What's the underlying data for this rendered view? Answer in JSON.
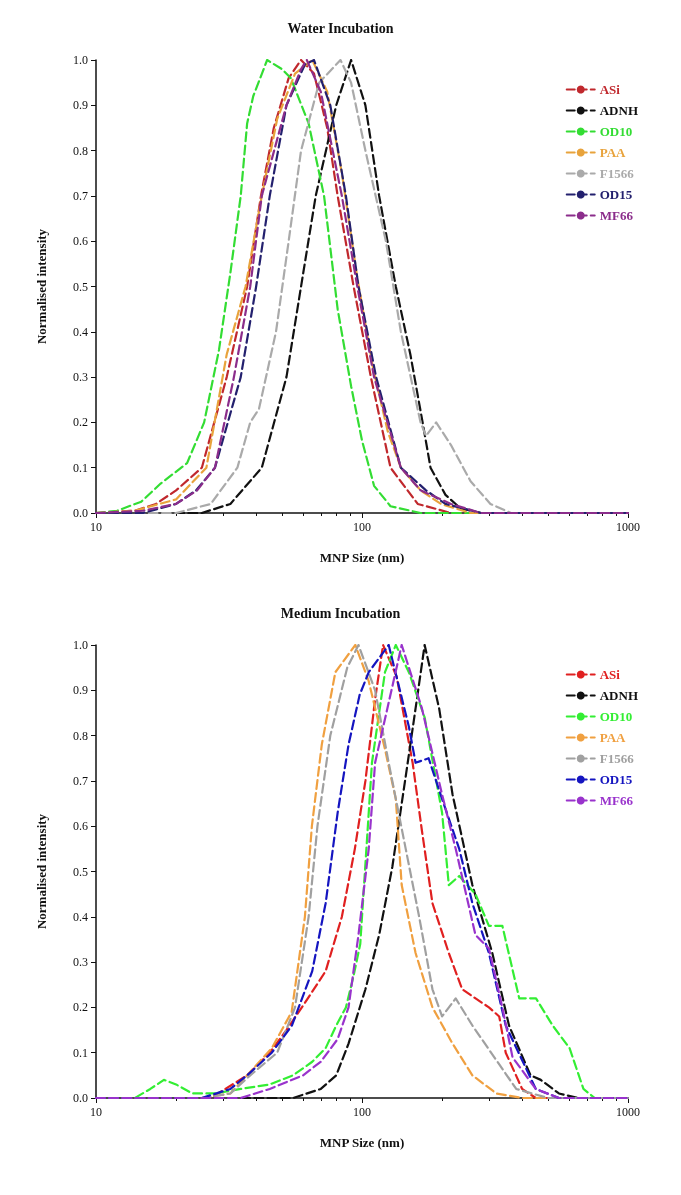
{
  "chart_data": [
    {
      "type": "line",
      "title": "Water Incubation",
      "xlabel": "MNP Size (nm)",
      "ylabel": "Normalised intensity",
      "log": "x",
      "xlim": [
        10,
        1000
      ],
      "xticks": [
        10,
        100,
        1000
      ],
      "ylim": [
        0,
        1
      ],
      "yticks": [
        {
          "value": 0,
          "label": "0.0"
        },
        {
          "value": 0.1,
          "label": "0.1"
        },
        {
          "value": 0.2,
          "label": "0.2"
        },
        {
          "value": 0.3,
          "label": "0.3"
        },
        {
          "value": 0.4,
          "label": "0.4"
        },
        {
          "value": 0.5,
          "label": "0.5"
        },
        {
          "value": 0.6,
          "label": "0.6"
        },
        {
          "value": 0.7,
          "label": "0.7"
        },
        {
          "value": 0.8,
          "label": "0.8"
        },
        {
          "value": 0.9,
          "label": "0.9"
        },
        {
          "value": 1,
          "label": "1.0"
        }
      ],
      "grid": false,
      "legend": "top right",
      "marker": "none",
      "line_style": "dashed",
      "series": [
        {
          "name": "ASi",
          "color": "#c0282d",
          "x": [
            10,
            14,
            16.8,
            20,
            25,
            31,
            37,
            41.7,
            46.6,
            53,
            59,
            66,
            74,
            81,
            93,
            108,
            128,
            162,
            216,
            1000
          ],
          "values": [
            0,
            0.005,
            0.02,
            0.05,
            0.1,
            0.3,
            0.5,
            0.7,
            0.85,
            0.96,
            1,
            0.97,
            0.85,
            0.7,
            0.5,
            0.3,
            0.1,
            0.02,
            0,
            0
          ]
        },
        {
          "name": "ADNH",
          "color": "#111111",
          "x": [
            10,
            25,
            32,
            42,
            52,
            59,
            67,
            80,
            91,
            103,
            116,
            134,
            152,
            169,
            181,
            206,
            235,
            280,
            1000
          ],
          "values": [
            0,
            0,
            0.02,
            0.1,
            0.3,
            0.5,
            0.7,
            0.9,
            1,
            0.9,
            0.7,
            0.5,
            0.35,
            0.2,
            0.1,
            0.04,
            0.01,
            0,
            0
          ]
        },
        {
          "name": "OD10",
          "color": "#33dd33",
          "x": [
            10,
            12,
            14.8,
            17.5,
            22,
            25.5,
            29,
            32,
            35,
            37,
            39,
            44,
            50,
            54,
            63,
            72,
            81,
            91,
            100,
            111,
            128,
            166,
            1000
          ],
          "values": [
            0,
            0.005,
            0.025,
            0.065,
            0.11,
            0.2,
            0.36,
            0.53,
            0.7,
            0.86,
            0.92,
            1,
            0.98,
            0.96,
            0.86,
            0.7,
            0.45,
            0.28,
            0.16,
            0.06,
            0.015,
            0,
            0
          ]
        },
        {
          "name": "PAA",
          "color": "#e8a33c",
          "x": [
            10,
            14,
            20,
            26,
            31,
            36.5,
            42,
            48,
            56,
            65,
            74,
            84,
            96,
            110,
            125,
            140,
            166,
            198,
            256,
            1000
          ],
          "values": [
            0,
            0.005,
            0.03,
            0.1,
            0.35,
            0.5,
            0.7,
            0.87,
            0.97,
            1,
            0.93,
            0.75,
            0.52,
            0.32,
            0.18,
            0.1,
            0.05,
            0.02,
            0,
            0
          ]
        },
        {
          "name": "F1566",
          "color": "#aaaaaa",
          "x": [
            10,
            20,
            27,
            34,
            38,
            41,
            47.5,
            53,
            59,
            69,
            83,
            91,
            103,
            123,
            140,
            166,
            174,
            190,
            216,
            256,
            304,
            363,
            1000
          ],
          "values": [
            0,
            0,
            0.02,
            0.1,
            0.2,
            0.23,
            0.4,
            0.6,
            0.8,
            0.95,
            1,
            0.95,
            0.8,
            0.6,
            0.4,
            0.2,
            0.17,
            0.2,
            0.15,
            0.07,
            0.02,
            0,
            0
          ]
        },
        {
          "name": "OD15",
          "color": "#23206e",
          "x": [
            10,
            15,
            20,
            23.8,
            28,
            35,
            40,
            45,
            52,
            61,
            66,
            76,
            87,
            97,
            113,
            140,
            174,
            206,
            280,
            1000
          ],
          "values": [
            0,
            0,
            0.02,
            0.05,
            0.1,
            0.3,
            0.5,
            0.7,
            0.9,
            0.99,
            1,
            0.9,
            0.7,
            0.5,
            0.3,
            0.1,
            0.05,
            0.02,
            0,
            0
          ]
        },
        {
          "name": "MF66",
          "color": "#8b2d8b",
          "x": [
            10,
            15,
            20,
            24,
            28,
            33,
            38,
            42,
            52,
            59,
            62,
            70,
            84,
            96,
            111,
            140,
            166,
            216,
            280,
            1000
          ],
          "values": [
            0,
            0.005,
            0.02,
            0.05,
            0.1,
            0.3,
            0.5,
            0.7,
            0.9,
            0.98,
            1,
            0.93,
            0.7,
            0.5,
            0.3,
            0.1,
            0.05,
            0.02,
            0,
            0
          ]
        }
      ]
    },
    {
      "type": "line",
      "title": "Medium Incubation",
      "xlabel": "MNP Size (nm)",
      "ylabel": "Normalised intensity",
      "log": "x",
      "xlim": [
        10,
        1000
      ],
      "xticks": [
        10,
        100,
        1000
      ],
      "ylim": [
        0,
        1
      ],
      "yticks": [
        {
          "value": 0,
          "label": "0.0"
        },
        {
          "value": 0.1,
          "label": "0.1"
        },
        {
          "value": 0.2,
          "label": "0.2"
        },
        {
          "value": 0.3,
          "label": "0.3"
        },
        {
          "value": 0.4,
          "label": "0.4"
        },
        {
          "value": 0.5,
          "label": "0.5"
        },
        {
          "value": 0.6,
          "label": "0.6"
        },
        {
          "value": 0.7,
          "label": "0.7"
        },
        {
          "value": 0.8,
          "label": "0.8"
        },
        {
          "value": 0.9,
          "label": "0.9"
        },
        {
          "value": 1,
          "label": "1.0"
        }
      ],
      "grid": false,
      "legend": "top right",
      "marker": "none",
      "line_style": "dashed",
      "series": [
        {
          "name": "ASi",
          "color": "#e02020",
          "x": [
            10,
            27,
            37,
            45,
            52,
            61,
            73,
            84,
            94,
            103,
            112,
            120,
            135,
            155,
            168,
            184,
            212,
            238,
            300,
            328,
            347,
            400,
            450,
            1000
          ],
          "values": [
            0,
            0,
            0.05,
            0.1,
            0.15,
            0.21,
            0.28,
            0.4,
            0.55,
            0.7,
            0.88,
            1,
            0.93,
            0.74,
            0.59,
            0.43,
            0.32,
            0.24,
            0.2,
            0.18,
            0.1,
            0.02,
            0,
            0
          ]
        },
        {
          "name": "ADNH",
          "color": "#111111",
          "x": [
            10,
            55,
            70,
            80,
            89,
            103,
            116,
            130,
            146,
            159,
            172,
            195,
            219,
            260,
            309,
            357,
            430,
            470,
            550,
            650,
            1000
          ],
          "values": [
            0,
            0,
            0.02,
            0.05,
            0.12,
            0.24,
            0.36,
            0.51,
            0.71,
            0.86,
            1,
            0.86,
            0.67,
            0.47,
            0.32,
            0.16,
            0.05,
            0.04,
            0.01,
            0,
            0
          ]
        },
        {
          "name": "OD10",
          "color": "#33ee33",
          "x": [
            10,
            14,
            16,
            18,
            20,
            23,
            28,
            35,
            45,
            55,
            65,
            73,
            80,
            87,
            93,
            98.5,
            109,
            122,
            134,
            150,
            172,
            200,
            212,
            232,
            267,
            300,
            337,
            390,
            451,
            521,
            603,
            680,
            750,
            1000
          ],
          "values": [
            0,
            0,
            0.02,
            0.04,
            0.03,
            0.01,
            0.01,
            0.02,
            0.03,
            0.05,
            0.08,
            0.11,
            0.16,
            0.2,
            0.27,
            0.34,
            0.74,
            0.94,
            1,
            0.94,
            0.84,
            0.63,
            0.47,
            0.49,
            0.45,
            0.38,
            0.38,
            0.22,
            0.22,
            0.16,
            0.11,
            0.02,
            0,
            0
          ]
        },
        {
          "name": "PAA",
          "color": "#f0a040",
          "x": [
            10,
            25,
            32,
            37,
            45.8,
            54.4,
            61,
            64.8,
            70.6,
            79.4,
            94.4,
            106,
            122,
            134,
            141,
            159,
            184,
            219,
            260,
            320,
            400,
            1000
          ],
          "values": [
            0,
            0,
            0.01,
            0.05,
            0.11,
            0.19,
            0.4,
            0.6,
            0.78,
            0.94,
            1,
            0.92,
            0.77,
            0.66,
            0.47,
            0.32,
            0.2,
            0.12,
            0.05,
            0.01,
            0,
            0
          ]
        },
        {
          "name": "F1566",
          "color": "#a0a0a0",
          "x": [
            10,
            25,
            32,
            38,
            48,
            56,
            63,
            68,
            76,
            88,
            97,
            112,
            126,
            146,
            164,
            184,
            200,
            225,
            260,
            380,
            500,
            1000
          ],
          "values": [
            0,
            0,
            0.01,
            0.05,
            0.1,
            0.2,
            0.4,
            0.6,
            0.8,
            0.95,
            1,
            0.9,
            0.74,
            0.55,
            0.4,
            0.24,
            0.18,
            0.22,
            0.16,
            0.02,
            0,
            0
          ]
        },
        {
          "name": "OD15",
          "color": "#1515c0",
          "x": [
            10,
            25,
            32,
            37,
            45.8,
            54.5,
            65,
            73,
            81,
            89,
            98,
            106,
            126,
            150,
            159,
            178,
            200,
            232,
            260,
            300,
            347,
            450,
            550,
            1000
          ],
          "values": [
            0,
            0,
            0.02,
            0.05,
            0.1,
            0.16,
            0.28,
            0.43,
            0.63,
            0.78,
            0.89,
            0.94,
            1,
            0.82,
            0.74,
            0.75,
            0.66,
            0.55,
            0.43,
            0.32,
            0.16,
            0.02,
            0,
            0
          ]
        },
        {
          "name": "MF66",
          "color": "#9933cc",
          "x": [
            10,
            35,
            45,
            60,
            70,
            81,
            89,
            97,
            106,
            112,
            141,
            168,
            200,
            225,
            267,
            300,
            337,
            368,
            450,
            550,
            1000
          ],
          "values": [
            0,
            0,
            0.02,
            0.05,
            0.08,
            0.13,
            0.2,
            0.36,
            0.55,
            0.74,
            1,
            0.86,
            0.67,
            0.55,
            0.36,
            0.33,
            0.2,
            0.09,
            0.02,
            0,
            0
          ]
        }
      ]
    }
  ]
}
